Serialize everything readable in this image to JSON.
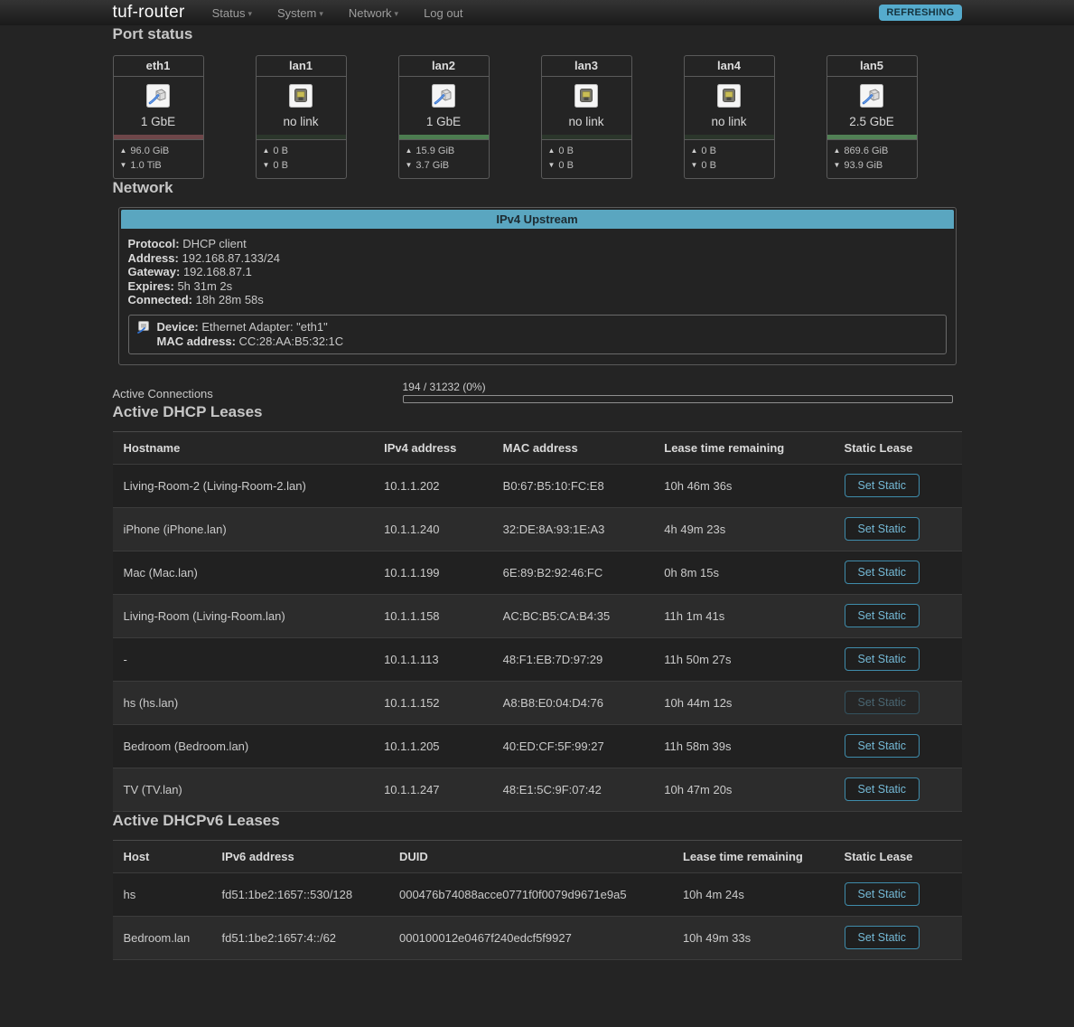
{
  "nav": {
    "brand": "tuf-router",
    "items": [
      {
        "label": "Status",
        "dropdown": true
      },
      {
        "label": "System",
        "dropdown": true
      },
      {
        "label": "Network",
        "dropdown": true
      },
      {
        "label": "Log out",
        "dropdown": false
      }
    ],
    "refresh_badge": "REFRESHING",
    "badge_color": "#55abcd"
  },
  "port_status": {
    "title": "Port status",
    "cards": [
      {
        "name": "eth1",
        "speed": "1 GbE",
        "link": "up",
        "icon": "ethernet-plug-icon",
        "bar_color": "#6e4649",
        "up": "96.0 GiB",
        "down": "1.0 TiB"
      },
      {
        "name": "lan1",
        "speed": "no link",
        "link": "down",
        "icon": "ethernet-port-icon",
        "bar_color": "#2b362b",
        "up": "0 B",
        "down": "0 B"
      },
      {
        "name": "lan2",
        "speed": "1 GbE",
        "link": "up",
        "icon": "ethernet-plug-icon",
        "bar_color": "#4c7c50",
        "up": "15.9 GiB",
        "down": "3.7 GiB"
      },
      {
        "name": "lan3",
        "speed": "no link",
        "link": "down",
        "icon": "ethernet-port-icon",
        "bar_color": "#2b362b",
        "up": "0 B",
        "down": "0 B"
      },
      {
        "name": "lan4",
        "speed": "no link",
        "link": "down",
        "icon": "ethernet-port-icon",
        "bar_color": "#2b362b",
        "up": "0 B",
        "down": "0 B"
      },
      {
        "name": "lan5",
        "speed": "2.5 GbE",
        "link": "up",
        "icon": "ethernet-plug-icon",
        "bar_color": "#518055",
        "up": "869.6 GiB",
        "down": "93.9 GiB"
      }
    ]
  },
  "network": {
    "title": "Network",
    "upstream": {
      "header": "IPv4 Upstream",
      "header_color": "#5aa6c0",
      "fields": [
        {
          "label": "Protocol:",
          "value": "DHCP client"
        },
        {
          "label": "Address:",
          "value": "192.168.87.133/24"
        },
        {
          "label": "Gateway:",
          "value": "192.168.87.1"
        },
        {
          "label": "Expires:",
          "value": "5h 31m 2s"
        },
        {
          "label": "Connected:",
          "value": "18h 28m 58s"
        }
      ],
      "device": {
        "icon": "ethernet-adapter-icon",
        "label": "Device:",
        "value": "Ethernet Adapter: \"eth1\"",
        "mac_label": "MAC address:",
        "mac_value": "CC:28:AA:B5:32:1C"
      }
    },
    "active_connections": {
      "label": "Active Connections",
      "value": "194 / 31232 (0%)",
      "percent": 0
    }
  },
  "dhcp_leases": {
    "title": "Active DHCP Leases",
    "columns": [
      "Hostname",
      "IPv4 address",
      "MAC address",
      "Lease time remaining",
      "Static Lease"
    ],
    "button_label": "Set Static",
    "rows": [
      {
        "hostname": "Living-Room-2 (Living-Room-2.lan)",
        "ipv4": "10.1.1.202",
        "mac": "B0:67:B5:10:FC:E8",
        "lease": "10h 46m 36s",
        "button_state": "enabled"
      },
      {
        "hostname": "iPhone (iPhone.lan)",
        "ipv4": "10.1.1.240",
        "mac": "32:DE:8A:93:1E:A3",
        "lease": "4h 49m 23s",
        "button_state": "enabled"
      },
      {
        "hostname": "Mac (Mac.lan)",
        "ipv4": "10.1.1.199",
        "mac": "6E:89:B2:92:46:FC",
        "lease": "0h 8m 15s",
        "button_state": "enabled"
      },
      {
        "hostname": "Living-Room (Living-Room.lan)",
        "ipv4": "10.1.1.158",
        "mac": "AC:BC:B5:CA:B4:35",
        "lease": "11h 1m 41s",
        "button_state": "enabled"
      },
      {
        "hostname": "-",
        "ipv4": "10.1.1.113",
        "mac": "48:F1:EB:7D:97:29",
        "lease": "11h 50m 27s",
        "button_state": "enabled"
      },
      {
        "hostname": "hs (hs.lan)",
        "ipv4": "10.1.1.152",
        "mac": "A8:B8:E0:04:D4:76",
        "lease": "10h 44m 12s",
        "button_state": "disabled"
      },
      {
        "hostname": "Bedroom (Bedroom.lan)",
        "ipv4": "10.1.1.205",
        "mac": "40:ED:CF:5F:99:27",
        "lease": "11h 58m 39s",
        "button_state": "enabled"
      },
      {
        "hostname": "TV (TV.lan)",
        "ipv4": "10.1.1.247",
        "mac": "48:E1:5C:9F:07:42",
        "lease": "10h 47m 20s",
        "button_state": "enabled"
      }
    ]
  },
  "dhcpv6_leases": {
    "title": "Active DHCPv6 Leases",
    "columns": [
      "Host",
      "IPv6 address",
      "DUID",
      "Lease time remaining",
      "Static Lease"
    ],
    "button_label": "Set Static",
    "rows": [
      {
        "host": "hs",
        "ipv6": "fd51:1be2:1657::530/128",
        "duid": "000476b74088acce0771f0f0079d9671e9a5",
        "lease": "10h 4m 24s",
        "button_state": "enabled"
      },
      {
        "host": "Bedroom.lan",
        "ipv6": "fd51:1be2:1657:4::/62",
        "duid": "000100012e0467f240edcf5f9927",
        "lease": "10h 49m 33s",
        "button_state": "enabled"
      }
    ]
  }
}
